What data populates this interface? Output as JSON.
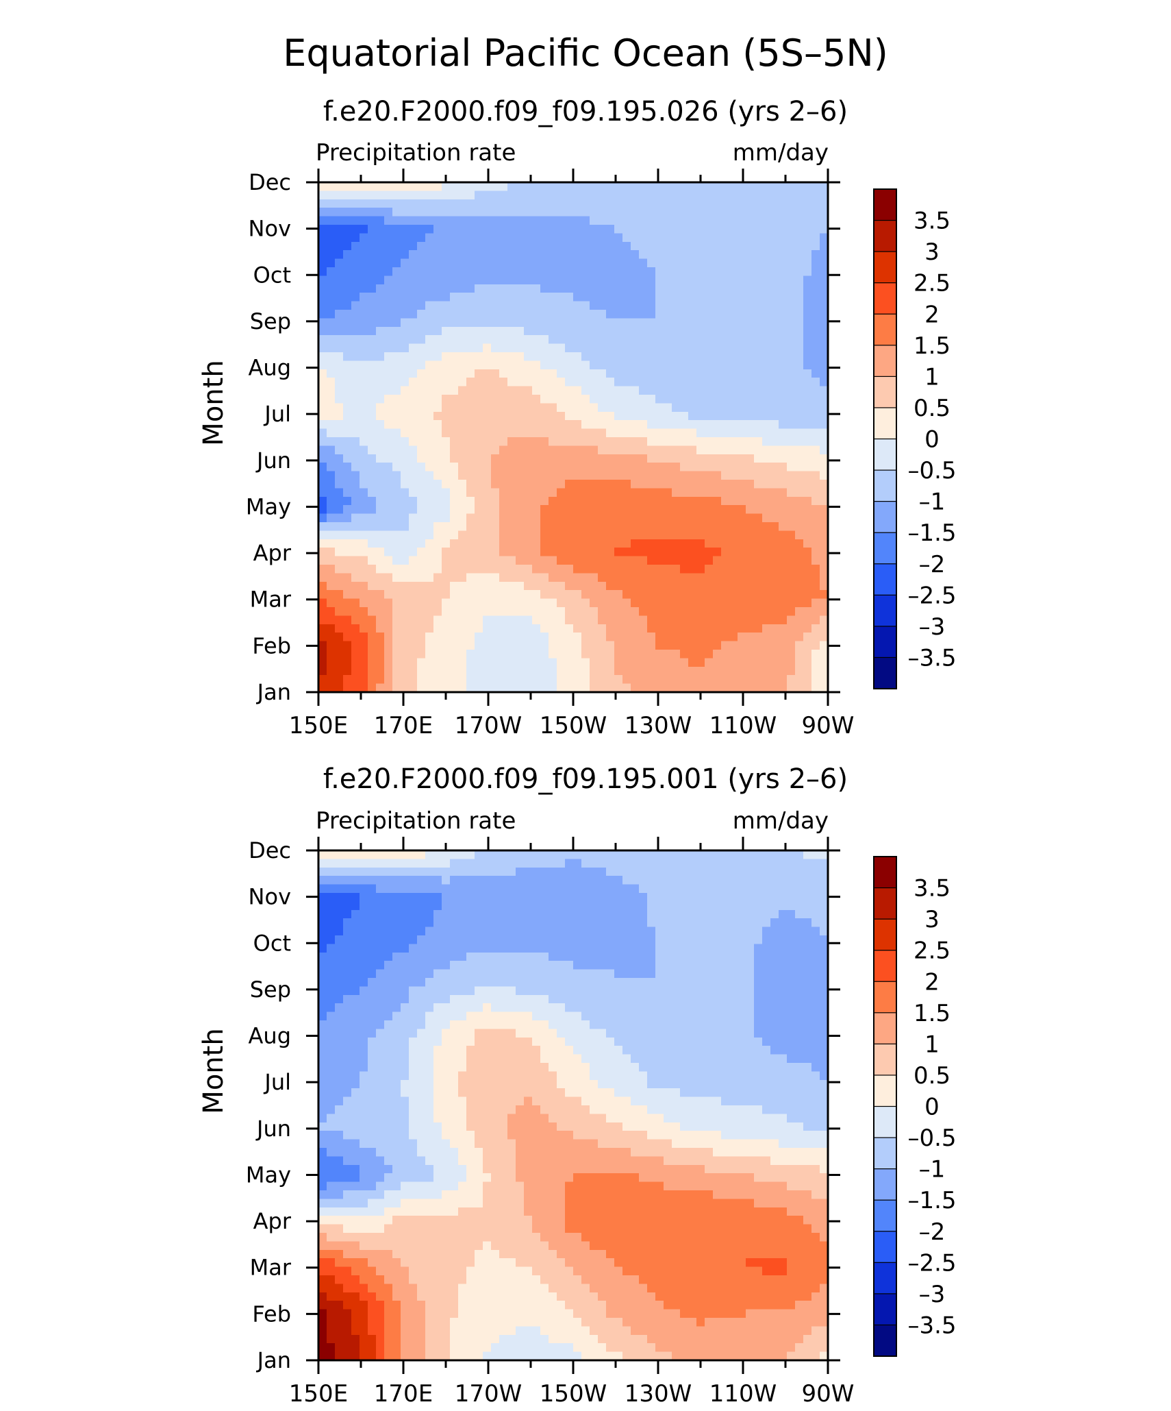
{
  "title": "Equatorial Pacific Ocean (5S–5N)",
  "colorbar": {
    "labels": [
      "3.5",
      "3",
      "2.5",
      "2",
      "1.5",
      "1",
      "0.5",
      "0",
      "–0.5",
      "–1",
      "–1.5",
      "–2",
      "–2.5",
      "–3",
      "–3.5"
    ],
    "colors": [
      "#8b0000",
      "#b81a00",
      "#dd3300",
      "#fc5020",
      "#fd7c45",
      "#fda783",
      "#fdcab0",
      "#feeedd",
      "#dde9f8",
      "#b3cdfb",
      "#83a8fb",
      "#5285fb",
      "#2a5df7",
      "#0f33da",
      "#0417b0",
      "#020a83"
    ]
  },
  "chart_data": [
    {
      "type": "heatmap",
      "title": "f.e20.F2000.f09_f09.195.026 (yrs 2–6)",
      "left_label": "Precipitation rate",
      "right_label": "mm/day",
      "ylabel": "Month",
      "x_ticks": [
        "150E",
        "170E",
        "170W",
        "150W",
        "130W",
        "110W",
        "90W"
      ],
      "y_ticks": [
        "Jan",
        "Feb",
        "Mar",
        "Apr",
        "May",
        "Jun",
        "Jul",
        "Aug",
        "Sep",
        "Oct",
        "Nov",
        "Dec"
      ],
      "contour_levels": [
        -3.5,
        -3,
        -2.5,
        -2,
        -1.5,
        -1,
        -0.5,
        0,
        0.5,
        1,
        1.5,
        2,
        2.5,
        3,
        3.5
      ],
      "x_lon": [
        150,
        160,
        170,
        180,
        190,
        200,
        210,
        220,
        230,
        240,
        250,
        260,
        270
      ],
      "values": [
        [
          3.0,
          2.2,
          0.6,
          0.2,
          -0.3,
          -0.3,
          0.2,
          0.9,
          1.2,
          1.4,
          1.2,
          1.0,
          0.1
        ],
        [
          3.2,
          2.3,
          0.7,
          0.3,
          -0.2,
          -0.3,
          0.3,
          1.1,
          1.5,
          1.6,
          1.4,
          1.3,
          0.2
        ],
        [
          2.0,
          1.4,
          0.9,
          0.5,
          0.1,
          0.2,
          0.8,
          1.4,
          1.7,
          1.9,
          1.8,
          1.7,
          1.5
        ],
        [
          0.7,
          0.4,
          -0.3,
          0.6,
          0.8,
          1.4,
          1.9,
          2.0,
          2.1,
          2.1,
          1.9,
          1.7,
          1.4
        ],
        [
          -2.3,
          -1.3,
          -0.7,
          -0.2,
          0.9,
          1.4,
          1.8,
          1.9,
          1.8,
          1.7,
          1.5,
          1.3,
          1.0
        ],
        [
          -1.6,
          -0.7,
          -0.3,
          0.4,
          1.0,
          1.2,
          1.3,
          1.2,
          1.0,
          0.8,
          0.6,
          0.4,
          0.2
        ],
        [
          0.2,
          -0.1,
          0.3,
          0.6,
          0.9,
          0.8,
          0.4,
          -0.1,
          -0.4,
          -0.6,
          -0.7,
          -0.8,
          -0.9
        ],
        [
          0.1,
          -0.4,
          -0.2,
          0.3,
          0.5,
          0.2,
          -0.3,
          -0.7,
          -0.8,
          -0.9,
          -0.9,
          -0.9,
          -1.1
        ],
        [
          -1.5,
          -1.3,
          -1.0,
          -0.7,
          -0.6,
          -0.7,
          -0.9,
          -1.0,
          -1.0,
          -0.9,
          -0.9,
          -0.9,
          -1.1
        ],
        [
          -2.0,
          -1.7,
          -1.4,
          -1.3,
          -1.1,
          -1.1,
          -1.1,
          -1.1,
          -1.0,
          -0.9,
          -0.9,
          -0.9,
          -1.1
        ],
        [
          -2.4,
          -2.1,
          -1.7,
          -1.4,
          -1.3,
          -1.2,
          -1.1,
          -1.0,
          -0.9,
          -0.9,
          -0.9,
          -0.9,
          -1.0
        ],
        [
          0.6,
          0.5,
          0.4,
          0.1,
          -0.3,
          -0.6,
          -0.7,
          -0.7,
          -0.7,
          -0.6,
          -0.6,
          -0.5,
          -0.5
        ]
      ]
    },
    {
      "type": "heatmap",
      "title": "f.e20.F2000.f09_f09.195.001 (yrs 2–6)",
      "left_label": "Precipitation rate",
      "right_label": "mm/day",
      "ylabel": "Month",
      "x_ticks": [
        "150E",
        "170E",
        "170W",
        "150W",
        "130W",
        "110W",
        "90W"
      ],
      "y_ticks": [
        "Jan",
        "Feb",
        "Mar",
        "Apr",
        "May",
        "Jun",
        "Jul",
        "Aug",
        "Sep",
        "Oct",
        "Nov",
        "Dec"
      ],
      "contour_levels": [
        -3.5,
        -3,
        -2.5,
        -2,
        -1.5,
        -1,
        -0.5,
        0,
        0.5,
        1,
        1.5,
        2,
        2.5,
        3,
        3.5
      ],
      "x_lon": [
        150,
        160,
        170,
        180,
        190,
        200,
        210,
        220,
        230,
        240,
        250,
        260,
        270
      ],
      "values": [
        [
          3.8,
          3.0,
          1.4,
          0.5,
          -0.1,
          -0.3,
          -0.2,
          0.4,
          0.9,
          1.1,
          1.1,
          1.0,
          0.2
        ],
        [
          3.6,
          2.8,
          1.4,
          0.6,
          0.2,
          0.1,
          0.5,
          1.1,
          1.4,
          1.6,
          1.5,
          1.4,
          1.2
        ],
        [
          2.4,
          1.8,
          1.0,
          0.6,
          0.4,
          0.5,
          1.0,
          1.5,
          1.7,
          1.9,
          2.0,
          2.1,
          1.6
        ],
        [
          0.4,
          0.0,
          0.7,
          0.7,
          0.6,
          1.0,
          1.7,
          1.9,
          1.9,
          2.0,
          1.9,
          1.7,
          1.3
        ],
        [
          -2.2,
          -1.6,
          -0.8,
          -0.5,
          0.5,
          1.2,
          1.5,
          1.6,
          1.4,
          1.2,
          1.0,
          0.8,
          0.6
        ],
        [
          -1.0,
          -0.7,
          -0.6,
          0.1,
          0.8,
          1.2,
          0.9,
          0.6,
          0.2,
          -0.1,
          -0.3,
          -0.4,
          -0.6
        ],
        [
          -1.3,
          -1.0,
          -0.5,
          0.3,
          1.0,
          0.9,
          0.3,
          -0.2,
          -0.6,
          -0.7,
          -0.7,
          -0.8,
          -1.0
        ],
        [
          -1.4,
          -1.1,
          -0.7,
          0.1,
          0.7,
          0.5,
          -0.2,
          -0.6,
          -0.8,
          -0.9,
          -0.9,
          -1.2,
          -1.2
        ],
        [
          -1.7,
          -1.5,
          -1.1,
          -0.7,
          -0.4,
          -0.6,
          -0.8,
          -0.9,
          -1.0,
          -0.9,
          -0.9,
          -1.2,
          -1.1
        ],
        [
          -2.1,
          -1.8,
          -1.6,
          -1.3,
          -1.1,
          -1.1,
          -1.2,
          -1.2,
          -1.0,
          -0.9,
          -0.9,
          -1.2,
          -1.0
        ],
        [
          -2.3,
          -2.0,
          -1.8,
          -1.5,
          -1.3,
          -1.3,
          -1.3,
          -1.2,
          -0.9,
          -0.9,
          -0.9,
          -0.9,
          -0.9
        ],
        [
          0.7,
          0.5,
          0.4,
          -0.1,
          -0.6,
          -0.8,
          -0.9,
          -0.8,
          -0.7,
          -0.6,
          -0.5,
          -0.5,
          -0.4
        ]
      ]
    }
  ]
}
